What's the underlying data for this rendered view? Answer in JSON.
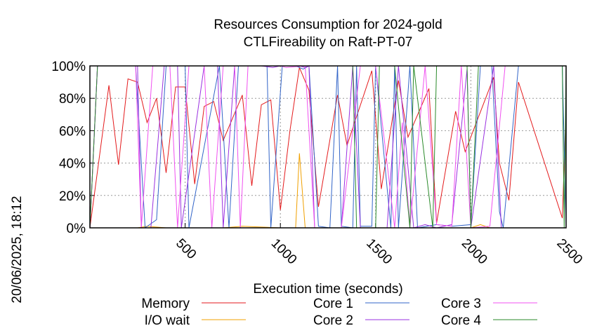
{
  "chart_data": {
    "type": "line",
    "title": "Resources Consumption for 2024-gold",
    "subtitle": "CTLFireability on Raft-PT-07",
    "xlabel": "Execution time (seconds)",
    "ylabel": "",
    "side_label": "20/06/2025, 18:12",
    "xlim": [
      0,
      2500
    ],
    "ylim": [
      0,
      100
    ],
    "x_ticks": [
      500,
      1000,
      1500,
      2000,
      2500
    ],
    "y_ticks": [
      {
        "value": 0,
        "label": "0%"
      },
      {
        "value": 20,
        "label": "20%"
      },
      {
        "value": 40,
        "label": "40%"
      },
      {
        "value": 60,
        "label": "60%"
      },
      {
        "value": 80,
        "label": "80%"
      },
      {
        "value": 100,
        "label": "100%"
      }
    ],
    "grid": true,
    "legend_position": "bottom",
    "series": [
      {
        "name": "Memory",
        "color": "#e41a1c",
        "points": [
          [
            0,
            0
          ],
          [
            100,
            88
          ],
          [
            150,
            39
          ],
          [
            200,
            92
          ],
          [
            250,
            90
          ],
          [
            300,
            65
          ],
          [
            350,
            80
          ],
          [
            400,
            34
          ],
          [
            450,
            87
          ],
          [
            500,
            87
          ],
          [
            550,
            27
          ],
          [
            600,
            75
          ],
          [
            650,
            78
          ],
          [
            700,
            54
          ],
          [
            800,
            82
          ],
          [
            850,
            26
          ],
          [
            900,
            76
          ],
          [
            950,
            79
          ],
          [
            1000,
            11
          ],
          [
            1050,
            60
          ],
          [
            1100,
            99
          ],
          [
            1150,
            85
          ],
          [
            1200,
            13
          ],
          [
            1300,
            82
          ],
          [
            1350,
            51
          ],
          [
            1480,
            97
          ],
          [
            1530,
            24
          ],
          [
            1620,
            91
          ],
          [
            1670,
            56
          ],
          [
            1780,
            86
          ],
          [
            1820,
            3
          ],
          [
            1920,
            72
          ],
          [
            1970,
            47
          ],
          [
            2120,
            93
          ],
          [
            2150,
            40
          ],
          [
            2200,
            17
          ],
          [
            2250,
            90
          ],
          [
            2480,
            6
          ],
          [
            2500,
            73
          ]
        ]
      },
      {
        "name": "I/O wait",
        "color": "#f0a000",
        "points": [
          [
            0,
            0
          ],
          [
            250,
            0
          ],
          [
            300,
            1
          ],
          [
            400,
            0
          ],
          [
            700,
            0
          ],
          [
            800,
            1
          ],
          [
            1000,
            0
          ],
          [
            1080,
            0
          ],
          [
            1100,
            46
          ],
          [
            1130,
            0
          ],
          [
            1500,
            0
          ],
          [
            2000,
            0
          ],
          [
            2050,
            2
          ],
          [
            2100,
            0
          ],
          [
            2500,
            0
          ]
        ]
      },
      {
        "name": "Core 1",
        "color": "#3264c8",
        "points": [
          [
            0,
            0
          ],
          [
            40,
            100
          ],
          [
            240,
            100
          ],
          [
            290,
            0
          ],
          [
            350,
            5
          ],
          [
            400,
            100
          ],
          [
            500,
            100
          ],
          [
            520,
            0
          ],
          [
            680,
            100
          ],
          [
            730,
            0
          ],
          [
            780,
            100
          ],
          [
            930,
            100
          ],
          [
            950,
            0
          ],
          [
            1010,
            100
          ],
          [
            1080,
            100
          ],
          [
            1120,
            98
          ],
          [
            1150,
            100
          ],
          [
            1200,
            1
          ],
          [
            1260,
            0
          ],
          [
            1300,
            100
          ],
          [
            1320,
            1
          ],
          [
            1380,
            0
          ],
          [
            1400,
            100
          ],
          [
            1420,
            1
          ],
          [
            1480,
            1
          ],
          [
            1500,
            100
          ],
          [
            1580,
            0
          ],
          [
            1600,
            100
          ],
          [
            1620,
            0
          ],
          [
            1680,
            100
          ],
          [
            1720,
            0
          ],
          [
            1820,
            2
          ],
          [
            1900,
            1
          ],
          [
            2000,
            2
          ],
          [
            2050,
            100
          ],
          [
            2110,
            100
          ],
          [
            2150,
            10
          ],
          [
            2170,
            0
          ],
          [
            2250,
            100
          ],
          [
            2480,
            100
          ],
          [
            2500,
            0
          ]
        ]
      },
      {
        "name": "Core 2",
        "color": "#9a30e0",
        "points": [
          [
            0,
            0
          ],
          [
            40,
            100
          ],
          [
            250,
            100
          ],
          [
            270,
            0
          ],
          [
            320,
            0
          ],
          [
            390,
            100
          ],
          [
            460,
            100
          ],
          [
            480,
            0
          ],
          [
            600,
            100
          ],
          [
            670,
            100
          ],
          [
            700,
            0
          ],
          [
            760,
            100
          ],
          [
            900,
            100
          ],
          [
            960,
            99
          ],
          [
            1000,
            100
          ],
          [
            1100,
            100
          ],
          [
            1130,
            99
          ],
          [
            1150,
            100
          ],
          [
            1180,
            0
          ],
          [
            1320,
            0
          ],
          [
            1380,
            100
          ],
          [
            1420,
            0
          ],
          [
            1560,
            0
          ],
          [
            1620,
            100
          ],
          [
            1700,
            0
          ],
          [
            1760,
            2
          ],
          [
            1820,
            0
          ],
          [
            1900,
            2
          ],
          [
            1980,
            98
          ],
          [
            2000,
            0
          ],
          [
            2120,
            100
          ],
          [
            2160,
            0
          ],
          [
            2500,
            0
          ]
        ]
      },
      {
        "name": "Core 3",
        "color": "#f050f0",
        "points": [
          [
            0,
            0
          ],
          [
            40,
            100
          ],
          [
            240,
            100
          ],
          [
            270,
            0
          ],
          [
            330,
            100
          ],
          [
            420,
            100
          ],
          [
            460,
            0
          ],
          [
            520,
            100
          ],
          [
            600,
            100
          ],
          [
            640,
            0
          ],
          [
            700,
            100
          ],
          [
            760,
            100
          ],
          [
            790,
            0
          ],
          [
            830,
            100
          ],
          [
            1000,
            100
          ],
          [
            1030,
            99
          ],
          [
            1130,
            100
          ],
          [
            1180,
            0
          ],
          [
            1320,
            0
          ],
          [
            1420,
            100
          ],
          [
            1500,
            100
          ],
          [
            1600,
            0
          ],
          [
            1640,
            65
          ],
          [
            1680,
            0
          ],
          [
            1760,
            100
          ],
          [
            1820,
            2
          ],
          [
            1900,
            1
          ],
          [
            1950,
            100
          ],
          [
            2000,
            0
          ],
          [
            2100,
            1
          ],
          [
            2180,
            100
          ],
          [
            2500,
            100
          ]
        ]
      },
      {
        "name": "Core 4",
        "color": "#2a8a2a",
        "points": [
          [
            0,
            0
          ],
          [
            40,
            100
          ],
          [
            1380,
            100
          ],
          [
            1400,
            0
          ],
          [
            1500,
            0
          ],
          [
            1520,
            100
          ],
          [
            1600,
            100
          ],
          [
            1680,
            0
          ],
          [
            1700,
            100
          ],
          [
            1800,
            0
          ],
          [
            1820,
            100
          ],
          [
            1980,
            100
          ],
          [
            2000,
            0
          ],
          [
            2040,
            100
          ],
          [
            2480,
            100
          ],
          [
            2490,
            0
          ],
          [
            2500,
            100
          ]
        ]
      }
    ]
  }
}
